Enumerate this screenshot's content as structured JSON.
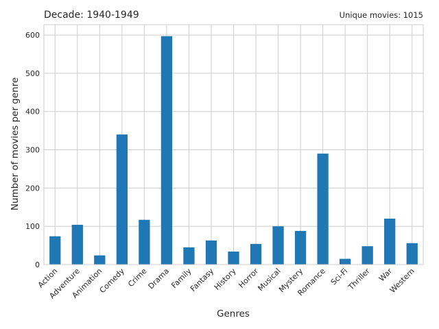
{
  "chart_data": {
    "type": "bar",
    "title_left": "Decade: 1940-1949",
    "title_right": "Unique movies: 1015",
    "xlabel": "Genres",
    "ylabel": "Number of movies per genre",
    "categories": [
      "Action",
      "Adventure",
      "Animation",
      "Comedy",
      "Crime",
      "Drama",
      "Family",
      "Fantasy",
      "History",
      "Horror",
      "Musical",
      "Mystery",
      "Romance",
      "Sci-Fi",
      "Thriller",
      "War",
      "Western"
    ],
    "values": [
      74,
      104,
      24,
      340,
      117,
      597,
      45,
      63,
      34,
      54,
      100,
      88,
      290,
      15,
      48,
      120,
      56
    ],
    "ylim": [
      0,
      627
    ],
    "yticks": [
      0,
      100,
      200,
      300,
      400,
      500,
      600
    ],
    "grid": true,
    "bar_color": "#1f77b4",
    "grid_color": "#cccccc"
  }
}
